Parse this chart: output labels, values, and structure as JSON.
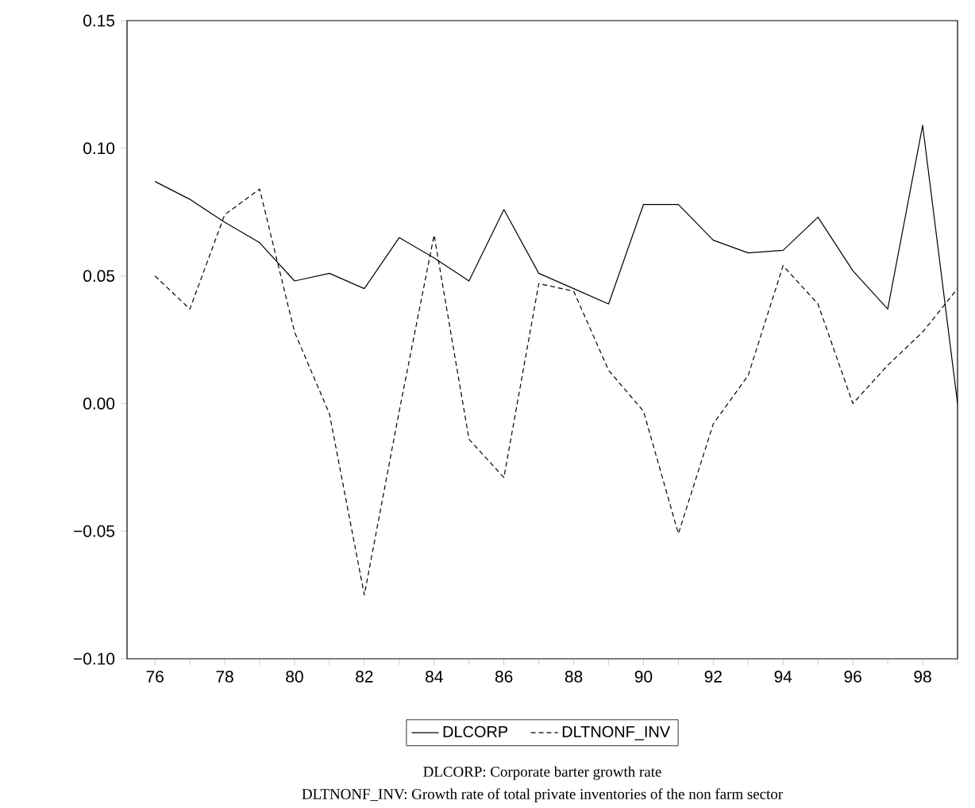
{
  "chart_data": {
    "type": "line",
    "x": [
      76,
      77,
      78,
      79,
      80,
      81,
      82,
      83,
      84,
      85,
      86,
      87,
      88,
      89,
      90,
      91,
      92,
      93,
      94,
      95,
      96,
      97,
      98,
      99
    ],
    "series": [
      {
        "name": "DLCORP",
        "color": "#000000",
        "line_style": "solid",
        "values": [
          0.087,
          0.08,
          0.071,
          0.063,
          0.048,
          0.051,
          0.045,
          0.065,
          0.057,
          0.048,
          0.076,
          0.051,
          0.045,
          0.039,
          0.078,
          0.078,
          0.064,
          0.059,
          0.06,
          0.073,
          0.052,
          0.037,
          0.109,
          0.0
        ]
      },
      {
        "name": "DLTNONF_INV",
        "color": "#000000",
        "line_style": "dashed",
        "values": [
          0.05,
          0.037,
          0.074,
          0.084,
          0.028,
          -0.004,
          -0.075,
          -0.003,
          0.066,
          -0.014,
          -0.029,
          0.047,
          0.044,
          0.013,
          -0.003,
          -0.051,
          -0.008,
          0.011,
          0.054,
          0.039,
          0.0,
          0.015,
          0.028,
          0.045
        ]
      }
    ],
    "xlim": [
      75.2,
      99
    ],
    "ylim": [
      -0.1,
      0.15
    ],
    "xticks": [
      76,
      {
        "value": 77,
        "label": null
      },
      78,
      {
        "value": 79,
        "label": null
      },
      80,
      {
        "value": 81,
        "label": null
      },
      82,
      {
        "value": 83,
        "label": null
      },
      84,
      {
        "value": 85,
        "label": null
      },
      86,
      {
        "value": 87,
        "label": null
      },
      88,
      {
        "value": 89,
        "label": null
      },
      90,
      {
        "value": 91,
        "label": null
      },
      92,
      {
        "value": 93,
        "label": null
      },
      94,
      {
        "value": 95,
        "label": null
      },
      96,
      {
        "value": 97,
        "label": null
      },
      98,
      {
        "value": 99,
        "label": null
      }
    ],
    "yticks": [
      {
        "value": -0.1,
        "label": "−0.10"
      },
      {
        "value": -0.05,
        "label": "−0.05"
      },
      {
        "value": 0.0,
        "label": "0.00"
      },
      {
        "value": 0.05,
        "label": "0.05"
      },
      {
        "value": 0.1,
        "label": "0.10"
      },
      {
        "value": 0.15,
        "label": "0.15"
      }
    ],
    "legend": "bottom",
    "grid": false,
    "marker": "none",
    "annotations": [
      "DLCORP: Corporate barter growth rate",
      "DLTNONF_INV: Growth rate of total private inventories of the non farm sector"
    ]
  }
}
